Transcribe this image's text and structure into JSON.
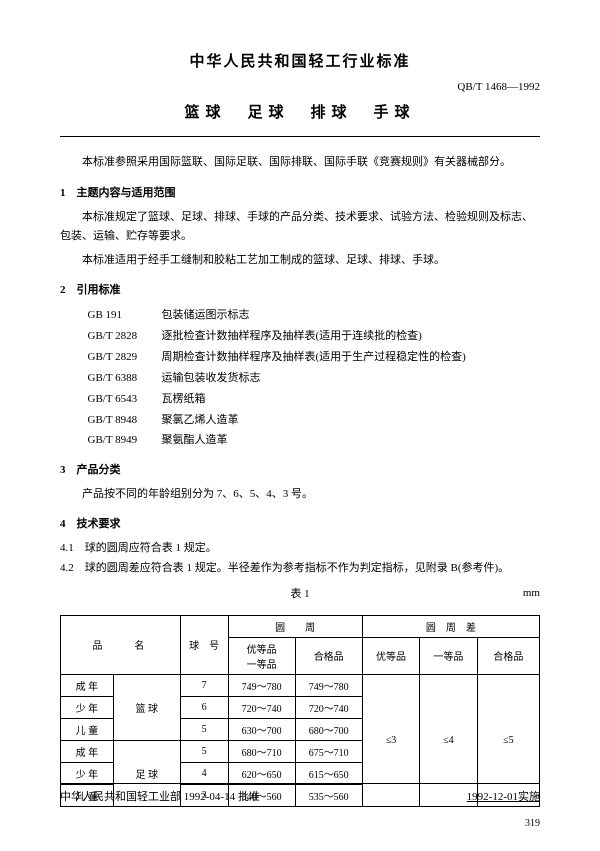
{
  "header": {
    "org_title": "中华人民共和国轻工行业标准",
    "doc_code": "QB/T 1468—1992",
    "main_title": "篮球　足球　排球　手球"
  },
  "intro": "本标准参照采用国际篮联、国际足联、国际排联、国际手联《竞赛规则》有关器械部分。",
  "section1": {
    "heading": "1　主题内容与适用范围",
    "p1": "本标准规定了篮球、足球、排球、手球的产品分类、技术要求、试验方法、检验规则及标志、包装、运输、贮存等要求。",
    "p2": "本标准适用于经手工缝制和胶粘工艺加工制成的篮球、足球、排球、手球。"
  },
  "section2": {
    "heading": "2　引用标准",
    "refs": [
      {
        "code": "GB 191",
        "text": "包装储运图示标志"
      },
      {
        "code": "GB/T 2828",
        "text": "逐批检查计数抽样程序及抽样表(适用于连续批的检查)"
      },
      {
        "code": "GB/T 2829",
        "text": "周期检查计数抽样程序及抽样表(适用于生产过程稳定性的检查)"
      },
      {
        "code": "GB/T 6388",
        "text": "运输包装收发货标志"
      },
      {
        "code": "GB/T 6543",
        "text": "瓦楞纸箱"
      },
      {
        "code": "GB/T 8948",
        "text": "聚氯乙烯人造革"
      },
      {
        "code": "GB/T 8949",
        "text": "聚氨酯人造革"
      }
    ]
  },
  "section3": {
    "heading": "3　产品分类",
    "p1": "产品按不同的年龄组别分为 7、6、5、4、3 号。"
  },
  "section4": {
    "heading": "4　技术要求",
    "item41": "4.1　球的圆周应符合表 1 规定。",
    "item42": "4.2　球的圆周差应符合表 1 规定。半径差作为参考指标不作为判定指标，见附录 B(参考件)。"
  },
  "table1": {
    "label": "表 1",
    "unit": "mm",
    "head": {
      "name": "品　　名",
      "ballno": "球　号",
      "circ": "圆　　周",
      "circdiff": "圆　周　差",
      "top_a": "优等品\n一等品",
      "top_b": "合格品",
      "diff_a": "优等品",
      "diff_b": "一等品",
      "diff_c": "合格品"
    },
    "rows": [
      {
        "age": "成 年",
        "sport": "篮 球",
        "no": "7",
        "c1": "749～780",
        "c2": "749～780"
      },
      {
        "age": "少 年",
        "sport": "",
        "no": "6",
        "c1": "720～740",
        "c2": "720～740"
      },
      {
        "age": "儿 童",
        "sport": "",
        "no": "5",
        "c1": "630～700",
        "c2": "680～700"
      },
      {
        "age": "成 年",
        "sport": "足 球",
        "no": "5",
        "c1": "680～710",
        "c2": "675～710"
      },
      {
        "age": "少 年",
        "sport": "",
        "no": "4",
        "c1": "620～650",
        "c2": "615～650"
      },
      {
        "age": "儿 童",
        "sport": "",
        "no": "3",
        "c1": "540～560",
        "c2": "535～560"
      }
    ],
    "diff": {
      "a": "≤3",
      "b": "≤4",
      "c": "≤5"
    }
  },
  "footer": {
    "approve": "中华人民共和国轻工业部 1992-04-14 批准",
    "implement": "1992-12-01实施",
    "page": "319"
  }
}
